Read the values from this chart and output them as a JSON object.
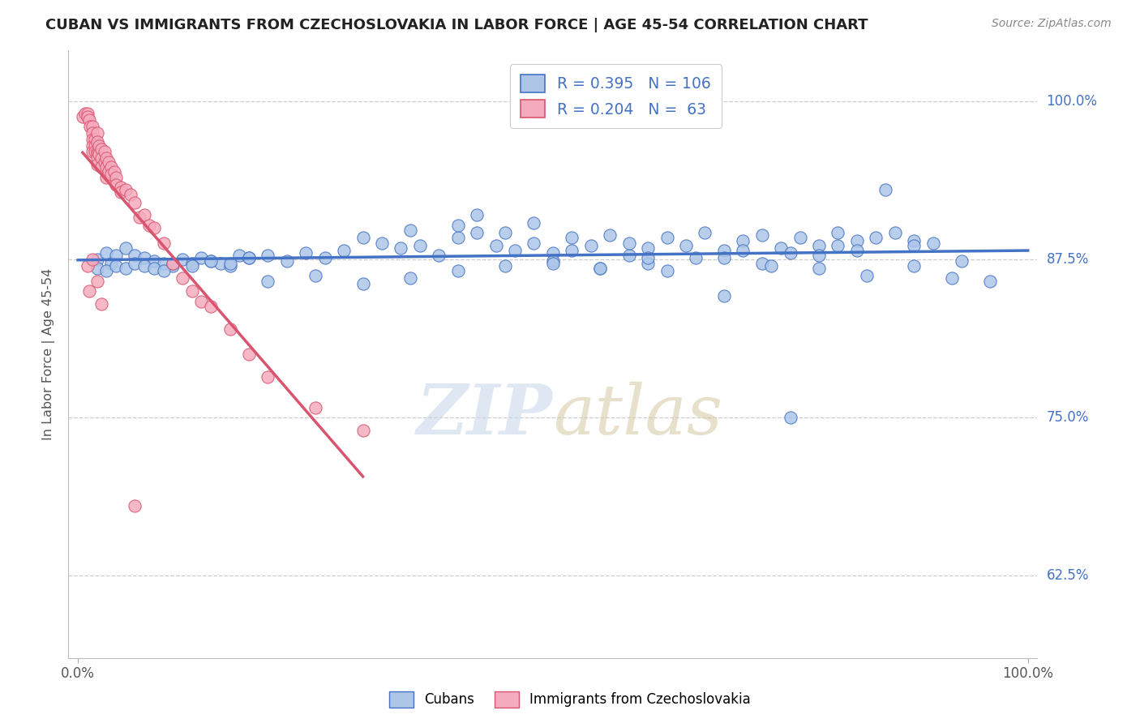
{
  "title": "CUBAN VS IMMIGRANTS FROM CZECHOSLOVAKIA IN LABOR FORCE | AGE 45-54 CORRELATION CHART",
  "source_text": "Source: ZipAtlas.com",
  "ylabel": "In Labor Force | Age 45-54",
  "ytick_labels": [
    "62.5%",
    "75.0%",
    "87.5%",
    "100.0%"
  ],
  "ytick_values": [
    0.625,
    0.75,
    0.875,
    1.0
  ],
  "xlim": [
    -0.01,
    1.01
  ],
  "ylim": [
    0.56,
    1.04
  ],
  "blue_R": 0.395,
  "blue_N": 106,
  "pink_R": 0.204,
  "pink_N": 63,
  "blue_color": "#adc6e8",
  "pink_color": "#f5abbe",
  "blue_line_color": "#4472c4",
  "pink_line_color": "#d9546e",
  "legend_label_blue": "Cubans",
  "legend_label_pink": "Immigrants from Czechoslovakia",
  "title_color": "#222222",
  "source_color": "#888888",
  "axis_color": "#555555",
  "grid_color": "#cccccc",
  "background_color": "#ffffff",
  "blue_dot_x": [
    0.02,
    0.03,
    0.035,
    0.04,
    0.05,
    0.06,
    0.07,
    0.08,
    0.09,
    0.1,
    0.11,
    0.12,
    0.13,
    0.14,
    0.15,
    0.16,
    0.17,
    0.18,
    0.02,
    0.03,
    0.04,
    0.05,
    0.06,
    0.07,
    0.08,
    0.09,
    0.1,
    0.12,
    0.14,
    0.16,
    0.18,
    0.2,
    0.22,
    0.24,
    0.26,
    0.28,
    0.3,
    0.32,
    0.34,
    0.36,
    0.38,
    0.4,
    0.42,
    0.44,
    0.46,
    0.48,
    0.5,
    0.52,
    0.54,
    0.56,
    0.58,
    0.6,
    0.62,
    0.64,
    0.66,
    0.68,
    0.7,
    0.72,
    0.74,
    0.76,
    0.78,
    0.8,
    0.82,
    0.84,
    0.86,
    0.88,
    0.9,
    0.2,
    0.25,
    0.3,
    0.35,
    0.4,
    0.45,
    0.5,
    0.55,
    0.6,
    0.65,
    0.7,
    0.75,
    0.8,
    0.35,
    0.4,
    0.45,
    0.5,
    0.55,
    0.6,
    0.42,
    0.48,
    0.52,
    0.58,
    0.62,
    0.68,
    0.72,
    0.78,
    0.82,
    0.88,
    0.92,
    0.96,
    0.85,
    0.75,
    0.68,
    0.73,
    0.78,
    0.83,
    0.88,
    0.93
  ],
  "blue_dot_y": [
    0.875,
    0.88,
    0.872,
    0.878,
    0.884,
    0.878,
    0.876,
    0.874,
    0.872,
    0.87,
    0.875,
    0.872,
    0.876,
    0.874,
    0.872,
    0.87,
    0.878,
    0.876,
    0.868,
    0.866,
    0.87,
    0.868,
    0.872,
    0.87,
    0.868,
    0.866,
    0.872,
    0.87,
    0.874,
    0.872,
    0.876,
    0.878,
    0.874,
    0.88,
    0.876,
    0.882,
    0.892,
    0.888,
    0.884,
    0.886,
    0.878,
    0.892,
    0.896,
    0.886,
    0.882,
    0.888,
    0.88,
    0.892,
    0.886,
    0.894,
    0.878,
    0.884,
    0.892,
    0.886,
    0.896,
    0.882,
    0.89,
    0.894,
    0.884,
    0.892,
    0.886,
    0.896,
    0.89,
    0.892,
    0.896,
    0.89,
    0.888,
    0.858,
    0.862,
    0.856,
    0.86,
    0.866,
    0.87,
    0.874,
    0.868,
    0.872,
    0.876,
    0.882,
    0.88,
    0.886,
    0.898,
    0.902,
    0.896,
    0.872,
    0.868,
    0.876,
    0.91,
    0.904,
    0.882,
    0.888,
    0.866,
    0.876,
    0.872,
    0.878,
    0.882,
    0.886,
    0.86,
    0.858,
    0.93,
    0.75,
    0.846,
    0.87,
    0.868,
    0.862,
    0.87,
    0.874
  ],
  "pink_dot_x": [
    0.005,
    0.008,
    0.01,
    0.01,
    0.012,
    0.013,
    0.015,
    0.015,
    0.015,
    0.015,
    0.015,
    0.018,
    0.018,
    0.018,
    0.02,
    0.02,
    0.02,
    0.02,
    0.02,
    0.02,
    0.022,
    0.022,
    0.025,
    0.025,
    0.025,
    0.028,
    0.028,
    0.03,
    0.03,
    0.03,
    0.032,
    0.032,
    0.035,
    0.035,
    0.038,
    0.04,
    0.04,
    0.045,
    0.045,
    0.05,
    0.055,
    0.06,
    0.065,
    0.07,
    0.075,
    0.08,
    0.09,
    0.1,
    0.11,
    0.12,
    0.13,
    0.14,
    0.16,
    0.18,
    0.2,
    0.25,
    0.3,
    0.01,
    0.012,
    0.015,
    0.02,
    0.025,
    0.06
  ],
  "pink_dot_y": [
    0.988,
    0.99,
    0.99,
    0.988,
    0.985,
    0.98,
    0.98,
    0.975,
    0.97,
    0.965,
    0.96,
    0.97,
    0.965,
    0.96,
    0.975,
    0.968,
    0.96,
    0.958,
    0.955,
    0.95,
    0.965,
    0.958,
    0.962,
    0.955,
    0.948,
    0.96,
    0.952,
    0.955,
    0.948,
    0.94,
    0.952,
    0.945,
    0.948,
    0.942,
    0.944,
    0.94,
    0.934,
    0.932,
    0.928,
    0.93,
    0.926,
    0.92,
    0.908,
    0.91,
    0.902,
    0.9,
    0.888,
    0.872,
    0.86,
    0.85,
    0.842,
    0.838,
    0.82,
    0.8,
    0.782,
    0.758,
    0.74,
    0.87,
    0.85,
    0.875,
    0.858,
    0.84,
    0.68
  ]
}
